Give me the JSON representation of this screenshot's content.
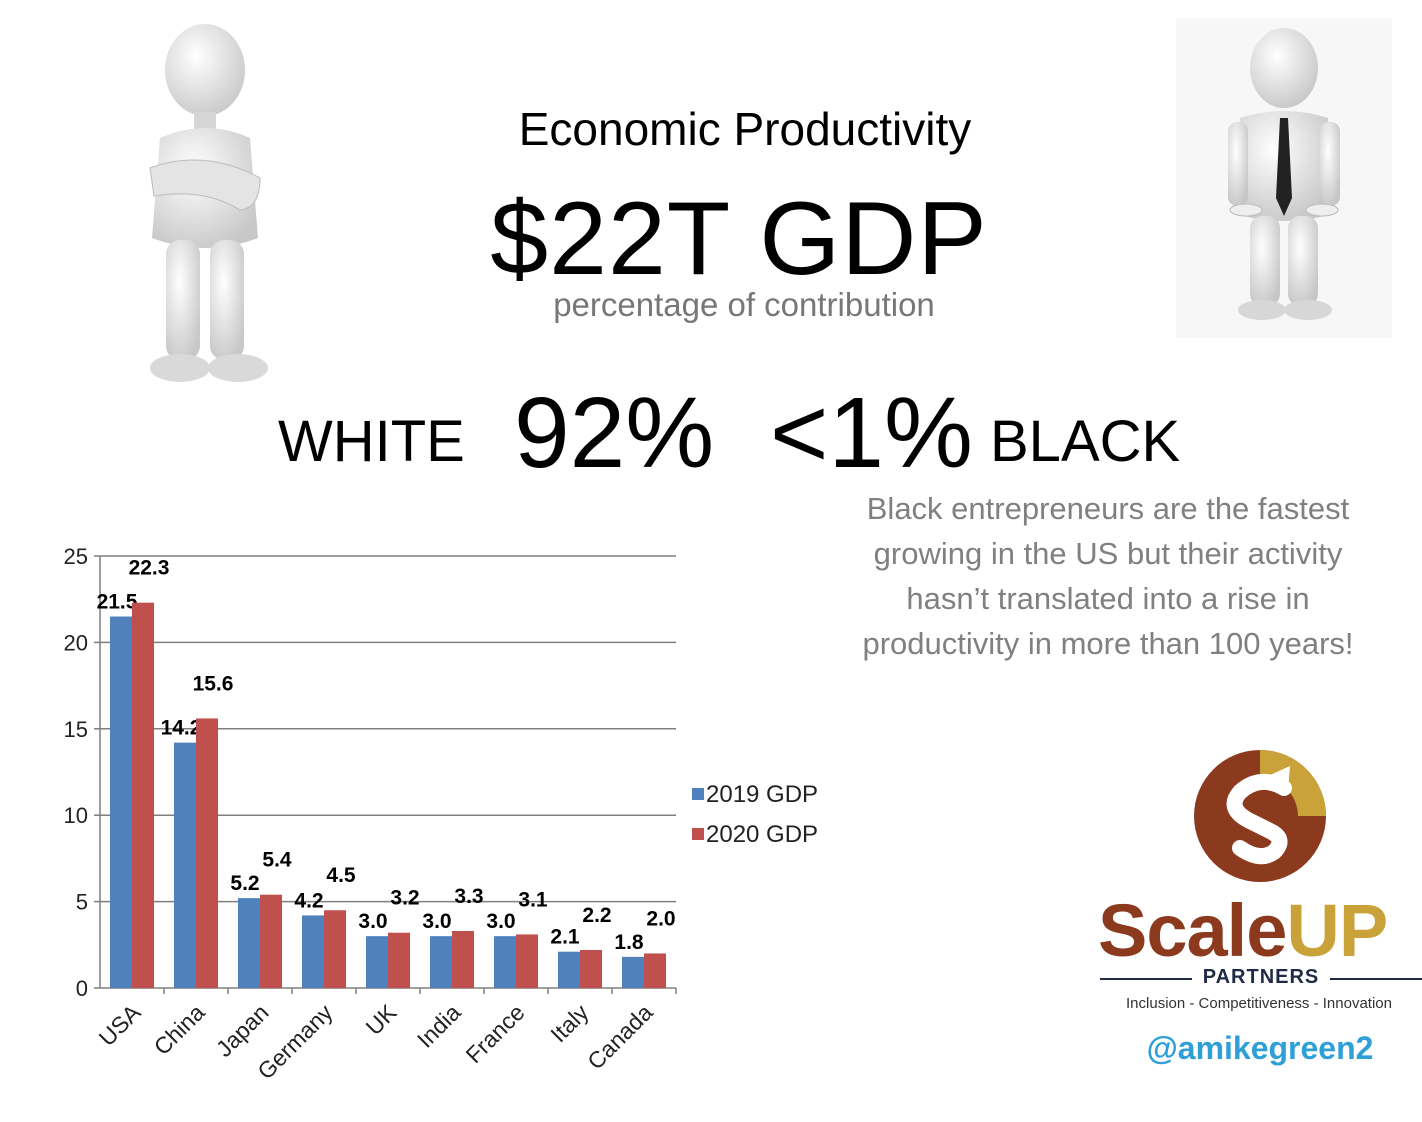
{
  "header": {
    "title": "Economic Productivity",
    "gdp": "$22T GDP",
    "subtitle": "percentage of contribution"
  },
  "stats": {
    "white_label": "WHITE",
    "white_value": "92%",
    "black_value": "<1%",
    "black_label": "BLACK"
  },
  "blurb": {
    "lines": [
      "Black entrepreneurs are the fastest",
      "growing in the US but their activity",
      "hasn’t translated into a rise in",
      "productivity in more than 100 years!"
    ]
  },
  "logo": {
    "word_a": "Scale",
    "word_b": "UP",
    "partners": "PARTNERS",
    "tagline": "Inclusion - Competitiveness - Innovation"
  },
  "handle": "@amikegreen2",
  "colors": {
    "series_2019": "#4f81bd",
    "series_2020": "#c0504d",
    "logo_brown": "#8b3a1e",
    "logo_gold": "#c9a23a",
    "logo_navy": "#1f2a44",
    "handle_blue": "#2f9fd8"
  },
  "chart_data": {
    "type": "bar",
    "categories": [
      "USA",
      "China",
      "Japan",
      "Germany",
      "UK",
      "India",
      "France",
      "Italy",
      "Canada"
    ],
    "series": [
      {
        "name": "2019 GDP",
        "values": [
          21.5,
          14.2,
          5.2,
          4.2,
          3.0,
          3.0,
          3.0,
          2.1,
          1.8
        ],
        "labels": [
          "21.5",
          "14.2",
          "5.2",
          "4.2",
          "3.0",
          "3.0",
          "3.0",
          "2.1",
          "1.8"
        ]
      },
      {
        "name": "2020 GDP",
        "values": [
          22.3,
          15.6,
          5.4,
          4.5,
          3.2,
          3.3,
          3.1,
          2.2,
          2.0
        ],
        "labels": [
          "22.3",
          "15.6",
          "5.4",
          "4.5",
          "3.2",
          "3.3",
          "3.1",
          "2.2",
          "2.0"
        ]
      }
    ],
    "ylim": [
      0,
      25
    ],
    "yticks": [
      0,
      5,
      10,
      15,
      20,
      25
    ],
    "grid": true,
    "legend": "right"
  }
}
